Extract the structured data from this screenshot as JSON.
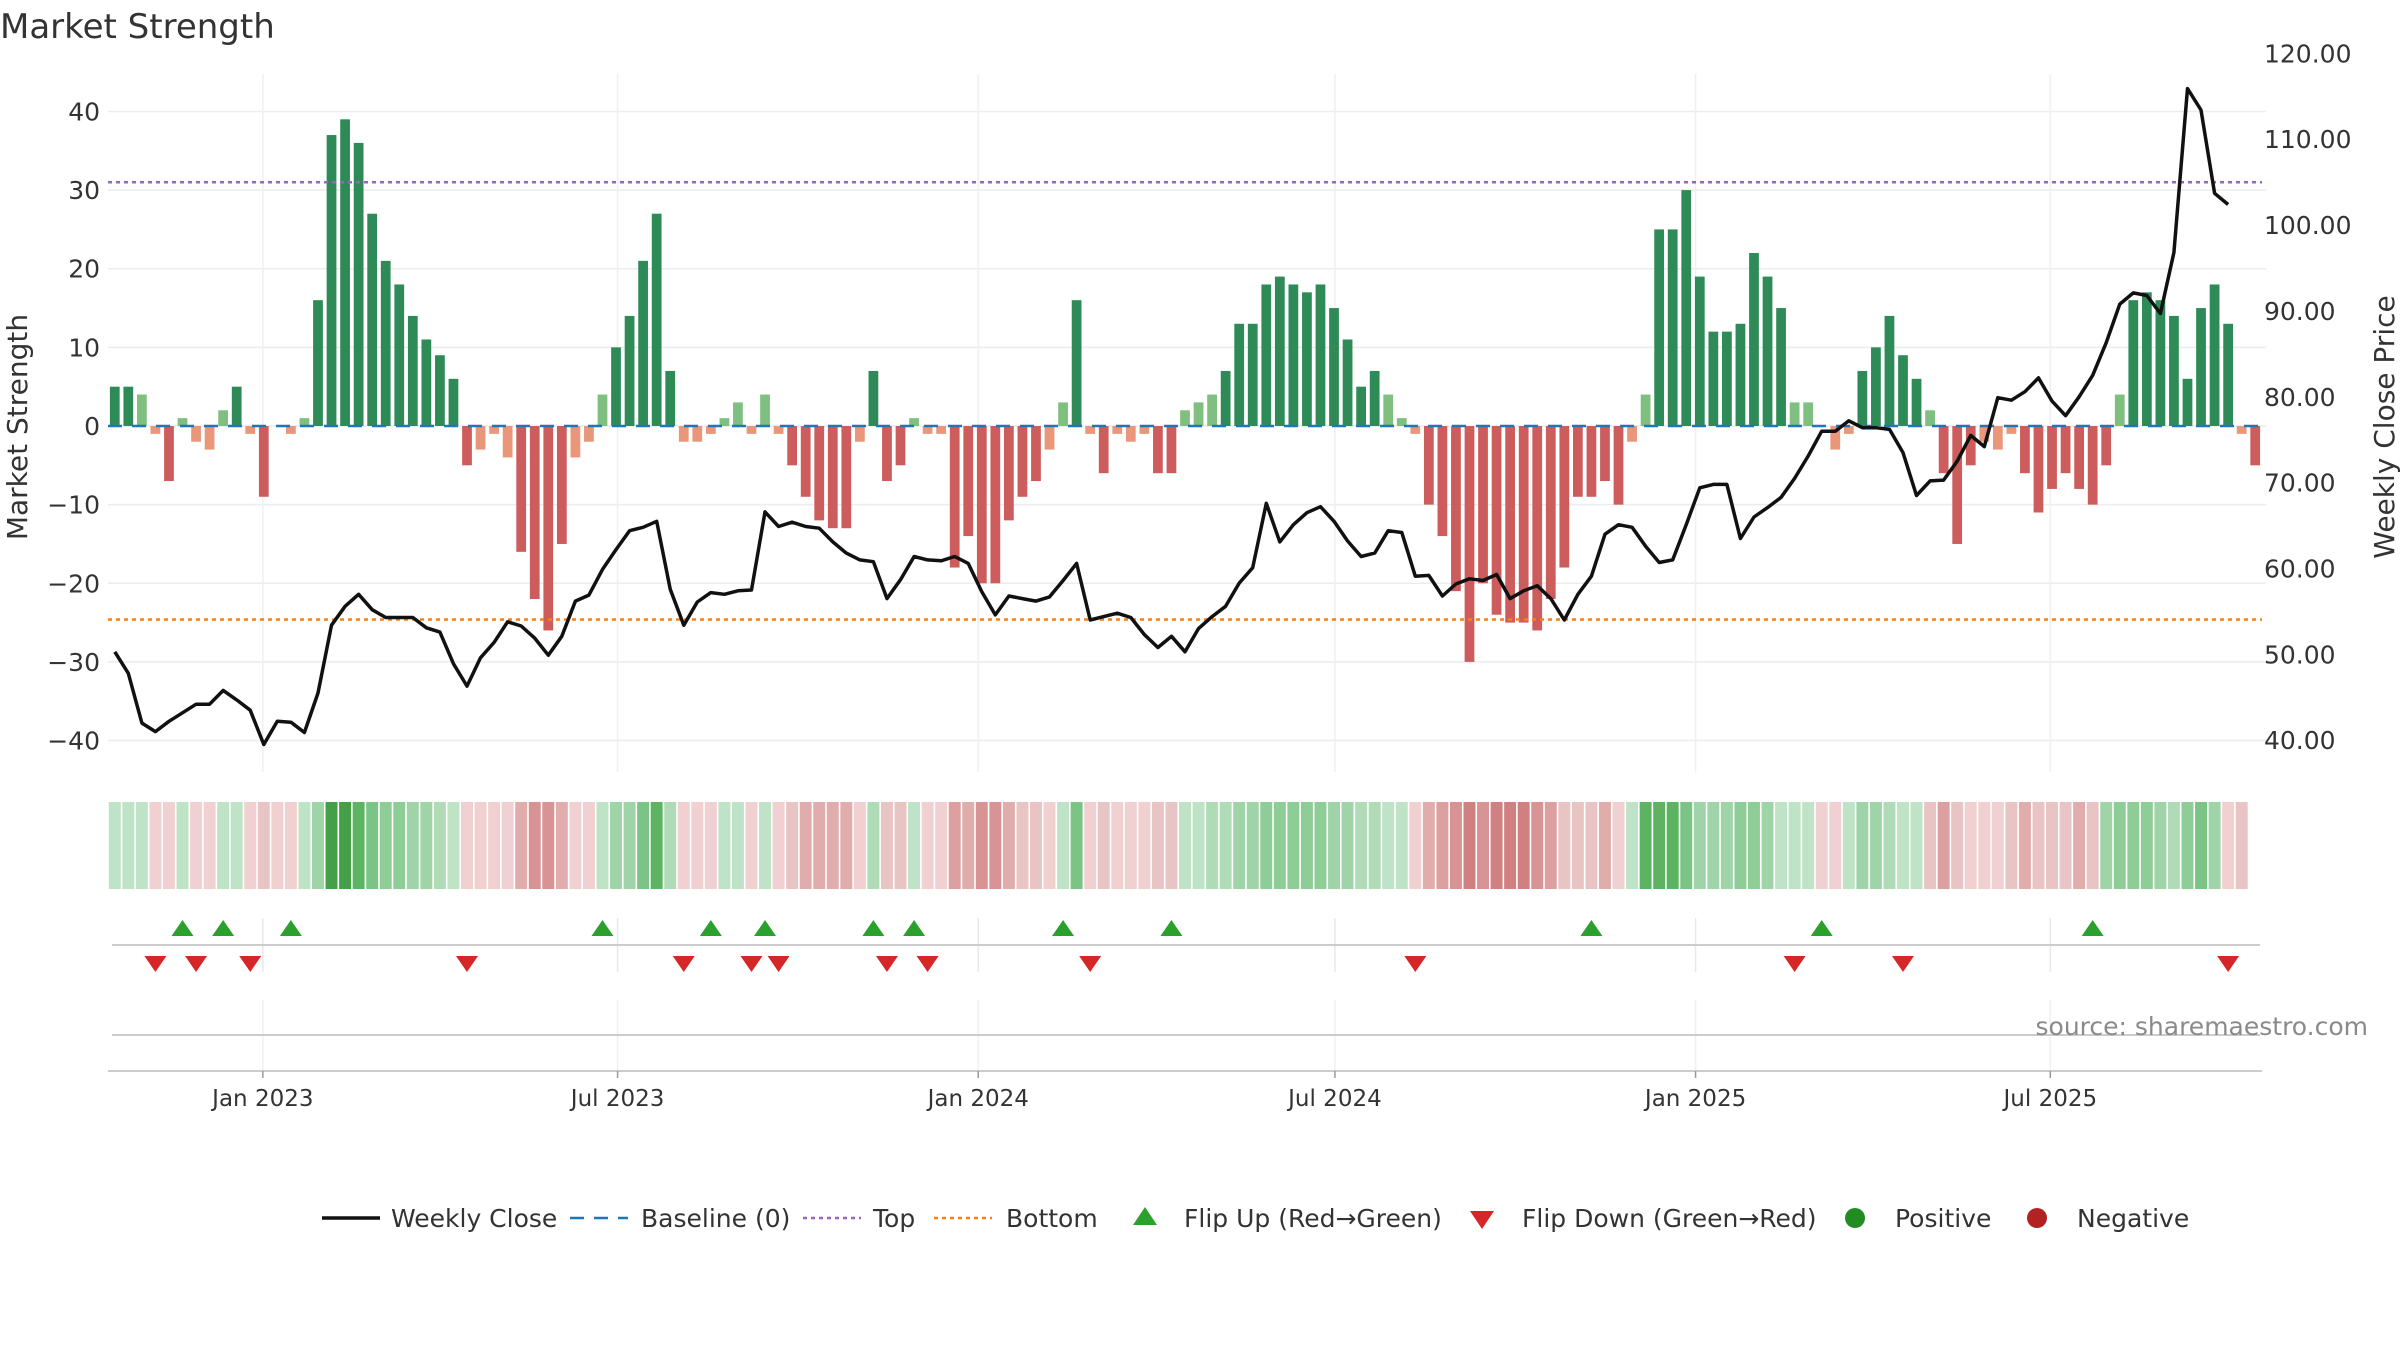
{
  "chart_data": {
    "type": "bar",
    "title": "Market Strength",
    "ylabel_left": "Market Strength",
    "ylabel_right": "Weekly Close Price",
    "ylim_left": [
      -44,
      44
    ],
    "ylim_right": [
      36.3,
      116.9
    ],
    "yticks_left": [
      40,
      30,
      20,
      10,
      0,
      -10,
      -20,
      -30,
      -40
    ],
    "yticks_left_labels": [
      "40",
      "30",
      "20",
      "10",
      "0",
      "−10",
      "−20",
      "−30",
      "−40"
    ],
    "yticks_right": [
      120,
      110,
      100,
      90,
      80,
      70,
      60,
      50,
      40
    ],
    "yticks_right_labels": [
      "120.00",
      "110.00",
      "100.00",
      "90.00",
      "80.00",
      "70.00",
      "60.00",
      "50.00",
      "40.00"
    ],
    "top_level": 31,
    "bottom_level": -24.6,
    "baseline": 0,
    "x_range": [
      "2022-10-14",
      "2025-10-17"
    ],
    "x_ticks": [
      {
        "label": "Jan 2023",
        "date": "2023-01-01"
      },
      {
        "label": "Jul 2023",
        "date": "2023-07-01"
      },
      {
        "label": "Jan 2024",
        "date": "2024-01-01"
      },
      {
        "label": "Jul 2024",
        "date": "2024-07-01"
      },
      {
        "label": "Jan 2025",
        "date": "2025-01-01"
      },
      {
        "label": "Jul 2025",
        "date": "2025-07-01"
      }
    ],
    "strength": [
      5,
      5,
      4,
      -1,
      -7,
      1,
      -2,
      -3,
      2,
      5,
      -1,
      -9,
      0,
      -1,
      1,
      16,
      37,
      39,
      36,
      27,
      21,
      18,
      14,
      11,
      9,
      6,
      -5,
      -3,
      -1,
      -4,
      -16,
      -22,
      -26,
      -15,
      -4,
      -2,
      4,
      10,
      14,
      21,
      27,
      7,
      -2,
      -2,
      -1,
      1,
      3,
      -1,
      4,
      -1,
      -5,
      -9,
      -12,
      -13,
      -13,
      -2,
      7,
      -7,
      -5,
      1,
      -1,
      -1,
      -18,
      -14,
      -20,
      -20,
      -12,
      -9,
      -7,
      -3,
      3,
      16,
      -1,
      -6,
      -1,
      -2,
      -1,
      -6,
      -6,
      2,
      3,
      4,
      7,
      13,
      13,
      18,
      19,
      18,
      17,
      18,
      15,
      11,
      5,
      7,
      4,
      1,
      -1,
      -10,
      -14,
      -21,
      -30,
      -20,
      -24,
      -25,
      -25,
      -26,
      -22,
      -18,
      -9,
      -9,
      -7,
      -10,
      -2,
      4,
      25,
      25,
      30,
      19,
      12,
      12,
      13,
      22,
      19,
      15,
      3,
      3,
      0,
      -3,
      -1,
      7,
      10,
      14,
      9,
      6,
      2,
      -6,
      -15,
      -5,
      -2,
      -3,
      -1,
      -6,
      -11,
      -8,
      -6,
      -8,
      -10,
      -5,
      4,
      16,
      17,
      16,
      14,
      6,
      15,
      18,
      13,
      -1,
      -5
    ],
    "weekly_close": [
      50.3,
      47.8,
      42.0,
      41.0,
      42.2,
      43.2,
      44.2,
      44.2,
      45.8,
      44.7,
      43.5,
      39.5,
      42.2,
      42.1,
      40.9,
      45.5,
      53.4,
      55.6,
      57.0,
      55.2,
      54.3,
      54.3,
      54.3,
      53.1,
      52.6,
      48.9,
      46.3,
      49.6,
      51.4,
      53.8,
      53.3,
      51.9,
      49.9,
      52.1,
      56.2,
      56.9,
      59.9,
      62.2,
      64.4,
      64.8,
      65.5,
      57.6,
      53.4,
      56.1,
      57.2,
      57.0,
      57.4,
      57.5,
      66.6,
      64.9,
      65.4,
      64.9,
      64.7,
      63.1,
      61.8,
      61.0,
      60.8,
      56.5,
      58.7,
      61.4,
      61.0,
      60.9,
      61.4,
      60.6,
      57.3,
      54.6,
      56.8,
      56.5,
      56.2,
      56.7,
      58.6,
      60.6,
      54.0,
      54.4,
      54.8,
      54.3,
      52.3,
      50.8,
      52.1,
      50.3,
      53.0,
      54.4,
      55.6,
      58.3,
      60.1,
      67.6,
      63.1,
      65.1,
      66.5,
      67.2,
      65.5,
      63.2,
      61.4,
      61.8,
      64.4,
      64.2,
      59.1,
      59.2,
      56.8,
      58.2,
      58.8,
      58.6,
      59.3,
      56.5,
      57.4,
      58.0,
      56.5,
      54.0,
      57.0,
      59.1,
      64.0,
      65.1,
      64.8,
      62.6,
      60.7,
      61.0,
      65.1,
      69.4,
      69.8,
      69.8,
      63.5,
      66.0,
      67.1,
      68.3,
      70.5,
      73.1,
      76.0,
      76.0,
      77.2,
      76.4,
      76.4,
      76.2,
      73.5,
      68.5,
      70.2,
      70.3,
      72.5,
      75.5,
      74.2,
      79.9,
      79.6,
      80.6,
      82.2,
      79.5,
      77.8,
      80.0,
      82.5,
      86.3,
      90.8,
      92.1,
      91.8,
      89.7,
      96.8,
      115.9,
      113.4,
      103.7,
      102.4
    ],
    "strip_colors": [
      "#bfe3c6",
      "#bfe3c6",
      "#bfe3c6",
      "#f0d0d0",
      "#f0d0d0",
      "#bfe3c6",
      "#f0d0d0",
      "#f0d0d0",
      "#bfe3c6",
      "#bfe3c6",
      "#f0d0d0",
      "#e8c4c4",
      "#f0d0d0",
      "#f0d0d0",
      "#bfe3c6",
      "#9fd4a8",
      "#43a047",
      "#43a047",
      "#5cb463",
      "#7cc485",
      "#8fcd97",
      "#8fcd97",
      "#9fd4a8",
      "#9fd4a8",
      "#afdbb7",
      "#bfe3c6",
      "#f0d0d0",
      "#f0d0d0",
      "#f0d0d0",
      "#f0d0d0",
      "#e0acac",
      "#d89494",
      "#d89494",
      "#e0acac",
      "#f0d0d0",
      "#f0d0d0",
      "#bfe3c6",
      "#9fd4a8",
      "#9fd4a8",
      "#7cc485",
      "#5cb463",
      "#afdbb7",
      "#f0d0d0",
      "#f0d0d0",
      "#f0d0d0",
      "#bfe3c6",
      "#bfe3c6",
      "#f0d0d0",
      "#bfe3c6",
      "#f0d0d0",
      "#e8c4c4",
      "#e0acac",
      "#e0acac",
      "#e0acac",
      "#e0acac",
      "#f0d0d0",
      "#afdbb7",
      "#e8c4c4",
      "#e8c4c4",
      "#bfe3c6",
      "#f0d0d0",
      "#f0d0d0",
      "#dca0a0",
      "#e0acac",
      "#d89494",
      "#d89494",
      "#e0acac",
      "#e8c4c4",
      "#e8c4c4",
      "#f0d0d0",
      "#bfe3c6",
      "#7cc485",
      "#f0d0d0",
      "#e8c4c4",
      "#f0d0d0",
      "#f0d0d0",
      "#f0d0d0",
      "#e8c4c4",
      "#e8c4c4",
      "#bfe3c6",
      "#bfe3c6",
      "#afdbb7",
      "#afdbb7",
      "#9fd4a8",
      "#9fd4a8",
      "#8fcd97",
      "#8fcd97",
      "#8fcd97",
      "#8fcd97",
      "#8fcd97",
      "#9fd4a8",
      "#9fd4a8",
      "#afdbb7",
      "#afdbb7",
      "#bfe3c6",
      "#bfe3c6",
      "#f0d0d0",
      "#e0acac",
      "#dca0a0",
      "#d89494",
      "#d08080",
      "#d89494",
      "#d08080",
      "#d08080",
      "#d08080",
      "#d89494",
      "#dca0a0",
      "#e8c4c4",
      "#e8c4c4",
      "#e8c4c4",
      "#e0acac",
      "#f0d0d0",
      "#bfe3c6",
      "#5cb463",
      "#5cb463",
      "#5cb463",
      "#7cc485",
      "#9fd4a8",
      "#9fd4a8",
      "#9fd4a8",
      "#8fcd97",
      "#8fcd97",
      "#9fd4a8",
      "#bfe3c6",
      "#bfe3c6",
      "#bfe3c6",
      "#f0d0d0",
      "#f0d0d0",
      "#bfe3c6",
      "#9fd4a8",
      "#9fd4a8",
      "#afdbb7",
      "#bfe3c6",
      "#bfe3c6",
      "#e8c4c4",
      "#dca0a0",
      "#e8c4c4",
      "#f0d0d0",
      "#f0d0d0",
      "#f0d0d0",
      "#e8c4c4",
      "#e0acac",
      "#e8c4c4",
      "#e8c4c4",
      "#e8c4c4",
      "#e0acac",
      "#e8c4c4",
      "#9fd4a8",
      "#8fcd97",
      "#8fcd97",
      "#8fcd97",
      "#9fd4a8",
      "#afdbb7",
      "#8fcd97",
      "#7cc485",
      "#9fd4a8",
      "#f0d0d0",
      "#e8c4c4"
    ],
    "flip_up_weeks": [
      5,
      8,
      13,
      36,
      44,
      48,
      56,
      59,
      70,
      78,
      109,
      126,
      146
    ],
    "flip_down_weeks": [
      3,
      6,
      10,
      26,
      42,
      47,
      49,
      57,
      60,
      72,
      96,
      124,
      132,
      156
    ],
    "legend": [
      "Weekly Close",
      "Baseline (0)",
      "Top",
      "Bottom",
      "Flip Up (Red→Green)",
      "Flip Down (Green→Red)",
      "Positive",
      "Negative"
    ],
    "source_text": "source: sharemaestro.com"
  },
  "colors": {
    "bar_pos_strong": "#2e8b57",
    "bar_pos_weak": "#7fbf7f",
    "bar_neg_strong": "#cd5c5c",
    "bar_neg_weak": "#e9967a",
    "close_line": "#111111",
    "baseline": "#1f77b4",
    "top": "#9467bd",
    "bottom": "#ff7f0e",
    "flip_up": "#2ca02c",
    "flip_down": "#d62728",
    "positive": "#228b22",
    "negative": "#b22222"
  }
}
